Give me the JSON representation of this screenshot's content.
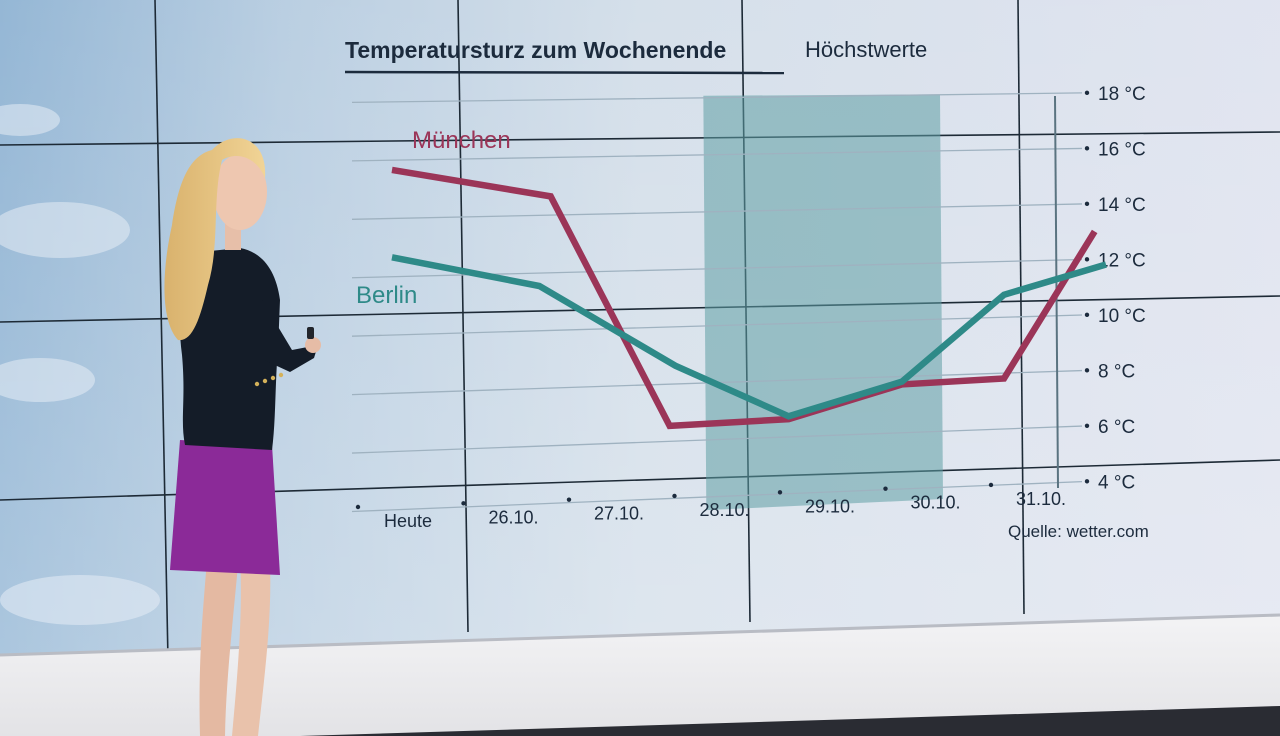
{
  "chart_data": {
    "type": "line",
    "title": "Temperatursturz zum Wochenende",
    "subtitle": "Höchstwerte",
    "categories": [
      "Heute",
      "26.10.",
      "27.10.",
      "28.10.",
      "29.10.",
      "30.10.",
      "31.10."
    ],
    "x_positions": [
      0,
      1,
      2,
      3,
      4,
      5,
      6
    ],
    "series": [
      {
        "name": "München",
        "color": "#9b3558",
        "x": [
          0,
          1.4,
          2.45,
          3.5,
          4.5,
          5.4,
          6.2
        ],
        "values": [
          15.6,
          14.6,
          6.5,
          6.6,
          7.7,
          7.8,
          13.0
        ]
      },
      {
        "name": "Berlin",
        "color": "#2e8a88",
        "x": [
          0,
          1.3,
          2.5,
          3.5,
          4.5,
          5.4,
          6.3
        ],
        "values": [
          12.6,
          11.5,
          8.6,
          6.7,
          7.8,
          10.8,
          11.8
        ]
      }
    ],
    "yticks": [
      "18 °C",
      "16 °C",
      "14 °C",
      "12 °C",
      "10 °C",
      "8 °C",
      "6 °C",
      "4 °C"
    ],
    "ytick_values": [
      18,
      16,
      14,
      12,
      10,
      8,
      6,
      4
    ],
    "ylim": [
      4,
      18
    ],
    "highlight_range": [
      2.8,
      4.8
    ],
    "grid": true,
    "source": "Quelle: wetter.com",
    "highlight_color": "#5e9ea4",
    "title_color": "#1c2b3d"
  }
}
